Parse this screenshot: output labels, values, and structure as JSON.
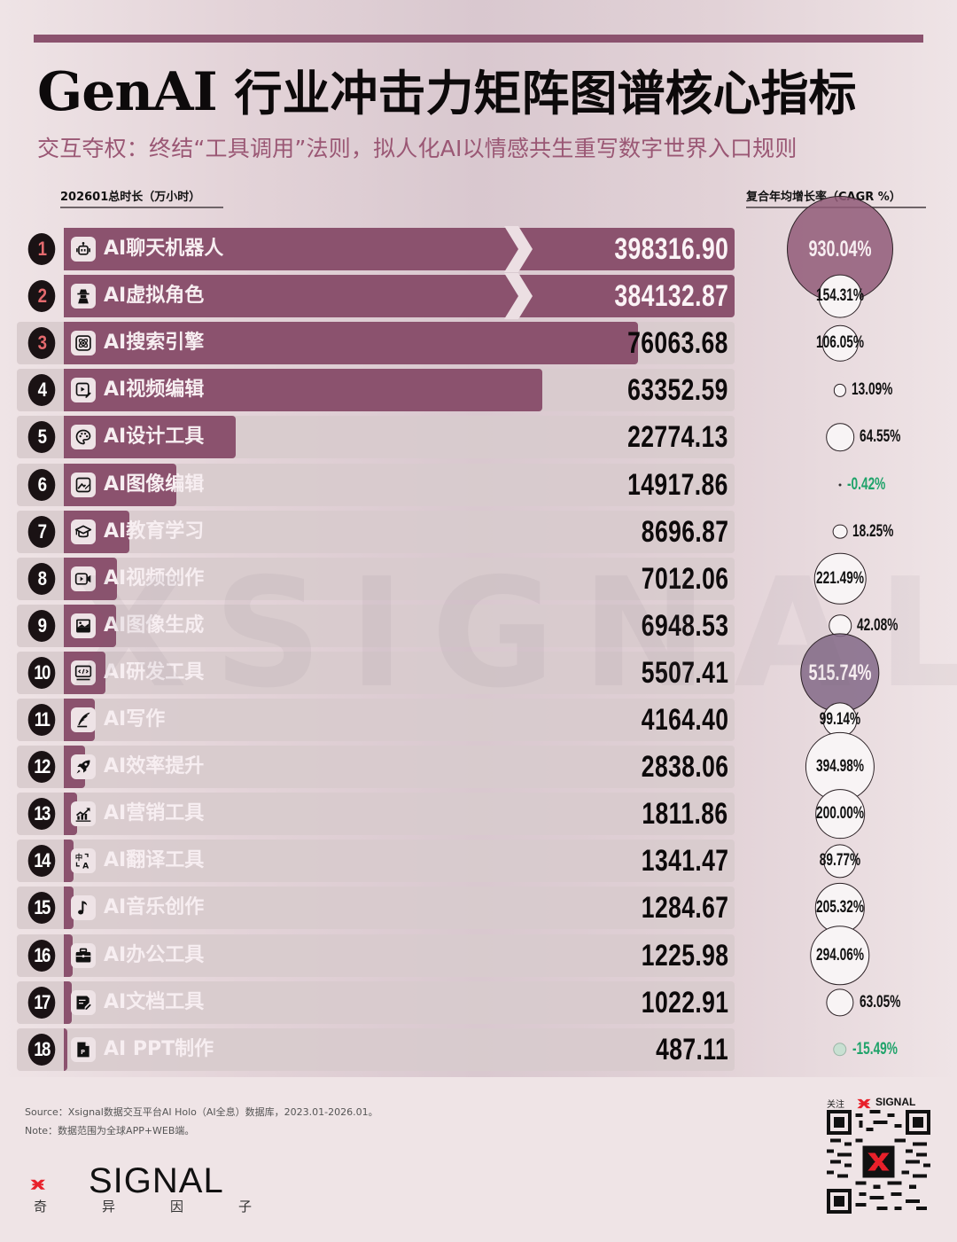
{
  "header": {
    "title_en": "GenAI ",
    "title_cn": "行业冲击力矩阵图谱核心指标",
    "subtitle": "交互夺权：终结“工具调用”法则，拟人化AI以情感共生重写数字世界入口规则"
  },
  "columns": {
    "left": "202601总时长（万小时）",
    "right": "复合年均增长率（CAGR %）"
  },
  "watermark": "XSIGNAL",
  "colors": {
    "bar": "#8b526e",
    "track": "#d8cbcd",
    "rank_top": "#e46a6e",
    "negative": "#1fa36a",
    "accent_red": "#e8202a"
  },
  "chart_data": {
    "type": "bar",
    "title": "GenAI 行业冲击力矩阵图谱核心指标",
    "subtitle": "交互夺权：终结“工具调用”法则，拟人化AI以情感共生重写数字世界入口规则",
    "xlabel": "202601总时长（万小时）",
    "ylabel": "",
    "orientation": "horizontal",
    "axis_break_after_rows": [
      1,
      2
    ],
    "categories": [
      "AI聊天机器人",
      "AI虚拟角色",
      "AI搜索引擎",
      "AI视频编辑",
      "AI设计工具",
      "AI图像编辑",
      "AI教育学习",
      "AI视频创作",
      "AI图像生成",
      "AI研发工具",
      "AI写作",
      "AI效率提升",
      "AI营销工具",
      "AI翻译工具",
      "AI音乐创作",
      "AI办公工具",
      "AI文档工具",
      "AI PPT制作"
    ],
    "series": [
      {
        "name": "202601总时长（万小时）",
        "type": "bar",
        "values": [
          398316.9,
          384132.87,
          76063.68,
          63352.59,
          22774.13,
          14917.86,
          8696.87,
          7012.06,
          6948.53,
          5507.41,
          4164.4,
          2838.06,
          1811.86,
          1341.47,
          1284.67,
          1225.98,
          1022.91,
          487.11
        ]
      },
      {
        "name": "复合年均增长率（CAGR %）",
        "type": "bubble",
        "values": [
          930.04,
          154.31,
          106.05,
          13.09,
          64.55,
          -0.42,
          18.25,
          221.49,
          42.08,
          515.74,
          99.14,
          394.98,
          200.0,
          89.77,
          205.32,
          294.06,
          63.05,
          -15.49
        ]
      }
    ]
  },
  "rows": [
    {
      "rank": "1",
      "label": "AI聊天机器人",
      "value": "398316.90",
      "cagr": "930.04%",
      "icon": "robot-icon"
    },
    {
      "rank": "2",
      "label": "AI虚拟角色",
      "value": "384132.87",
      "cagr": "154.31%",
      "icon": "spy-icon"
    },
    {
      "rank": "3",
      "label": "AI搜索引擎",
      "value": "76063.68",
      "cagr": "106.05%",
      "icon": "atom-icon"
    },
    {
      "rank": "4",
      "label": "AI视频编辑",
      "value": "63352.59",
      "cagr": "13.09%",
      "icon": "video-edit-icon"
    },
    {
      "rank": "5",
      "label": "AI设计工具",
      "value": "22774.13",
      "cagr": "64.55%",
      "icon": "palette-icon"
    },
    {
      "rank": "6",
      "label": "AI图像编辑",
      "value": "14917.86",
      "cagr": "-0.42%",
      "icon": "image-edit-icon"
    },
    {
      "rank": "7",
      "label": "AI教育学习",
      "value": "8696.87",
      "cagr": "18.25%",
      "icon": "graduation-cap-icon"
    },
    {
      "rank": "8",
      "label": "AI视频创作",
      "value": "7012.06",
      "cagr": "221.49%",
      "icon": "video-camera-icon"
    },
    {
      "rank": "9",
      "label": "AI图像生成",
      "value": "6948.53",
      "cagr": "42.08%",
      "icon": "image-icon"
    },
    {
      "rank": "10",
      "label": "AI研发工具",
      "value": "5507.41",
      "cagr": "515.74%",
      "icon": "code-monitor-icon"
    },
    {
      "rank": "11",
      "label": "AI写作",
      "value": "4164.40",
      "cagr": "99.14%",
      "icon": "quill-icon"
    },
    {
      "rank": "12",
      "label": "AI效率提升",
      "value": "2838.06",
      "cagr": "394.98%",
      "icon": "rocket-icon"
    },
    {
      "rank": "13",
      "label": "AI营销工具",
      "value": "1811.86",
      "cagr": "200.00%",
      "icon": "chart-growth-icon"
    },
    {
      "rank": "14",
      "label": "AI翻译工具",
      "value": "1341.47",
      "cagr": "89.77%",
      "icon": "translate-icon"
    },
    {
      "rank": "15",
      "label": "AI音乐创作",
      "value": "1284.67",
      "cagr": "205.32%",
      "icon": "music-note-icon"
    },
    {
      "rank": "16",
      "label": "AI办公工具",
      "value": "1225.98",
      "cagr": "294.06%",
      "icon": "briefcase-icon"
    },
    {
      "rank": "17",
      "label": "AI文档工具",
      "value": "1022.91",
      "cagr": "63.05%",
      "icon": "document-edit-icon"
    },
    {
      "rank": "18",
      "label": "AI PPT制作",
      "value": "487.11",
      "cagr": "-15.49%",
      "icon": "ppt-file-icon"
    }
  ],
  "footer": {
    "source": "Source：Xsignal数据交互平台AI Holo（AI全息）数据库，2023.01-2026.01。",
    "note": "Note：数据范围为全球APP+WEB端。",
    "logo_text": "SIGNAL",
    "logo_cn": "奇异因子",
    "qr_caption": "关注",
    "qr_brand": "SIGNAL"
  }
}
